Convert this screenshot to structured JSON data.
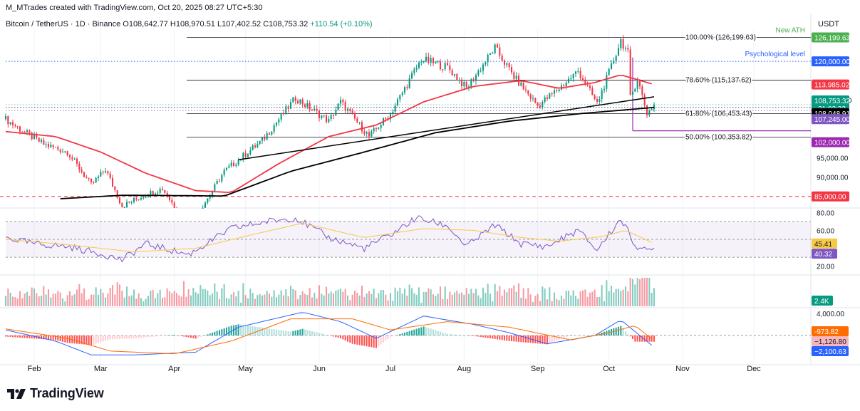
{
  "header": {
    "attribution": "M_MTrades created with TradingView.com, Oct 20, 2025 08:27 UTC+5:30",
    "symbol": "Bitcoin / TetherUS · 1D · Binance",
    "ohlc": "O108,642.77 H108,970.51 L107,402.52 C108,753.32",
    "change": "+110.54 (+0.10%)",
    "currency": "USDT"
  },
  "footer": {
    "brand": "TradingView"
  },
  "colors": {
    "up": "#089981",
    "down": "#f23645",
    "ema50": "#f23645",
    "ema200": "#000000",
    "rsi": "#7e57c2",
    "rsi_ma": "#f7c948",
    "macd": "#2962ff",
    "signal": "#ff6d00",
    "fib": "#131722",
    "ath": "#4caf50",
    "psych": "#2962ff",
    "support": "#e91e63"
  },
  "chart_data": {
    "type": "candlestick",
    "x_ticks": [
      "Feb",
      "Mar",
      "Apr",
      "May",
      "Jun",
      "Jul",
      "Aug",
      "Sep",
      "Oct",
      "Nov",
      "Dec"
    ],
    "price_axis_ticks": [
      "110,000.00",
      "95,000.00",
      "90,000.00"
    ],
    "price_ylim": [
      82000,
      128500
    ],
    "ohlc_keypoints": [
      [
        "2025-01-20",
        105000
      ],
      [
        "2025-01-27",
        102000
      ],
      [
        "2025-02-05",
        98500
      ],
      [
        "2025-02-15",
        96500
      ],
      [
        "2025-02-25",
        88000
      ],
      [
        "2025-03-03",
        92000
      ],
      [
        "2025-03-10",
        82500
      ],
      [
        "2025-03-20",
        85500
      ],
      [
        "2025-03-27",
        87000
      ],
      [
        "2025-04-07",
        77000
      ],
      [
        "2025-04-15",
        84500
      ],
      [
        "2025-04-22",
        91500
      ],
      [
        "2025-04-28",
        94500
      ],
      [
        "2025-05-08",
        99500
      ],
      [
        "2025-05-22",
        110500
      ],
      [
        "2025-06-05",
        104500
      ],
      [
        "2025-06-10",
        109500
      ],
      [
        "2025-06-22",
        100500
      ],
      [
        "2025-07-01",
        106500
      ],
      [
        "2025-07-14",
        120500
      ],
      [
        "2025-07-25",
        118500
      ],
      [
        "2025-08-02",
        113000
      ],
      [
        "2025-08-14",
        123500
      ],
      [
        "2025-08-22",
        116000
      ],
      [
        "2025-09-01",
        108500
      ],
      [
        "2025-09-10",
        113000
      ],
      [
        "2025-09-18",
        117500
      ],
      [
        "2025-09-26",
        109000
      ],
      [
        "2025-10-01",
        117000
      ],
      [
        "2025-10-06",
        125500
      ],
      [
        "2025-10-09",
        122000
      ],
      [
        "2025-10-10",
        110500
      ],
      [
        "2025-10-13",
        115500
      ],
      [
        "2025-10-17",
        106500
      ],
      [
        "2025-10-20",
        108753
      ]
    ],
    "candle_data_note": "",
    "fib_levels": [
      {
        "label": "100.00% (126,199.63)",
        "value": 126199.63
      },
      {
        "label": "78.60% (115,137.62)",
        "value": 115137.62
      },
      {
        "label": "61.80% (106,453.43)",
        "value": 106453.43
      },
      {
        "label": "50.00% (100,353.82)",
        "value": 100353.82
      }
    ],
    "annotations": [
      {
        "label": "New ATH",
        "value": 126199.63
      },
      {
        "label": "Psychological level",
        "value": 120000
      }
    ],
    "price_labels": [
      {
        "text": "126,199.63",
        "value": 126199.63,
        "color": "#4caf50"
      },
      {
        "text": "120,000.00",
        "value": 120000,
        "color": "#2962ff"
      },
      {
        "text": "113,985.02",
        "value": 113985.02,
        "color": "#f23645"
      },
      {
        "text": "108,753.32",
        "value": 108753.32,
        "color": "#089981",
        "sub": "21:02:32"
      },
      {
        "text": "108,048.91",
        "value": 108048.91,
        "color": "#000000"
      },
      {
        "text": "107,245.00",
        "value": 107245,
        "color": "#7e57c2"
      },
      {
        "text": "102,000.00",
        "value": 102000,
        "color": "#9c27b0"
      },
      {
        "text": "85,000.00",
        "value": 85000,
        "color": "#f23645"
      }
    ],
    "ema50_keypoints": [
      [
        "2025-01-20",
        101800
      ],
      [
        "2025-02-10",
        100500
      ],
      [
        "2025-03-01",
        96500
      ],
      [
        "2025-03-20",
        91000
      ],
      [
        "2025-04-10",
        86500
      ],
      [
        "2025-04-25",
        86000
      ],
      [
        "2025-05-15",
        93500
      ],
      [
        "2025-06-05",
        100500
      ],
      [
        "2025-06-25",
        103500
      ],
      [
        "2025-07-15",
        109500
      ],
      [
        "2025-08-05",
        113500
      ],
      [
        "2025-08-25",
        115000
      ],
      [
        "2025-09-10",
        113000
      ],
      [
        "2025-09-25",
        114500
      ],
      [
        "2025-10-06",
        116500
      ],
      [
        "2025-10-20",
        113985
      ]
    ],
    "ema200_keypoints": [
      [
        "2025-02-12",
        84400
      ],
      [
        "2025-03-10",
        85300
      ],
      [
        "2025-04-05",
        85200
      ],
      [
        "2025-04-22",
        85100
      ],
      [
        "2025-05-20",
        91500
      ],
      [
        "2025-06-20",
        96500
      ],
      [
        "2025-07-20",
        101500
      ],
      [
        "2025-08-20",
        104500
      ],
      [
        "2025-09-20",
        106500
      ],
      [
        "2025-10-20",
        108048
      ]
    ],
    "trendline": {
      "from": [
        "2025-04-28",
        94500
      ],
      "to": [
        "2025-10-20",
        110800
      ]
    },
    "support_line": {
      "value": 102000,
      "from": "2025-10-11",
      "to": "2025-11-28"
    },
    "rsi": {
      "axis_ticks": [
        "80.00",
        "60.00",
        "20.00"
      ],
      "levels": [
        70,
        50,
        30
      ],
      "ylim": [
        15,
        85
      ],
      "value_label": "40.32",
      "ma_label": "45.41",
      "keypoints": [
        [
          "2025-01-20",
          52
        ],
        [
          "2025-02-01",
          45
        ],
        [
          "2025-02-15",
          42
        ],
        [
          "2025-03-01",
          34
        ],
        [
          "2025-03-10",
          27
        ],
        [
          "2025-03-20",
          45
        ],
        [
          "2025-04-07",
          33
        ],
        [
          "2025-04-25",
          62
        ],
        [
          "2025-05-10",
          70
        ],
        [
          "2025-05-22",
          74
        ],
        [
          "2025-06-05",
          52
        ],
        [
          "2025-06-20",
          40
        ],
        [
          "2025-07-01",
          55
        ],
        [
          "2025-07-12",
          74
        ],
        [
          "2025-07-25",
          65
        ],
        [
          "2025-08-02",
          42
        ],
        [
          "2025-08-14",
          66
        ],
        [
          "2025-08-25",
          45
        ],
        [
          "2025-09-05",
          42
        ],
        [
          "2025-09-18",
          60
        ],
        [
          "2025-09-26",
          38
        ],
        [
          "2025-10-06",
          73
        ],
        [
          "2025-10-12",
          44
        ],
        [
          "2025-10-17",
          36
        ],
        [
          "2025-10-20",
          40.32
        ]
      ],
      "ma_keypoints": [
        [
          "2025-01-20",
          50
        ],
        [
          "2025-02-15",
          44
        ],
        [
          "2025-03-15",
          36
        ],
        [
          "2025-04-10",
          40
        ],
        [
          "2025-05-05",
          56
        ],
        [
          "2025-05-25",
          68
        ],
        [
          "2025-06-20",
          52
        ],
        [
          "2025-07-15",
          62
        ],
        [
          "2025-08-05",
          60
        ],
        [
          "2025-08-25",
          52
        ],
        [
          "2025-09-10",
          48
        ],
        [
          "2025-09-28",
          53
        ],
        [
          "2025-10-08",
          60
        ],
        [
          "2025-10-20",
          45.41
        ]
      ]
    },
    "volume": {
      "value_label": "2.4K"
    },
    "macd": {
      "axis_ticks": [
        "4,000.00"
      ],
      "ylim": [
        -5000,
        5000
      ],
      "labels": [
        {
          "text": "-973.82",
          "color": "#ff6d00"
        },
        {
          "text": "−1,126.80",
          "color": "#f5b7bd"
        },
        {
          "text": "−2,100.63",
          "color": "#2962ff"
        }
      ],
      "macd_keypoints": [
        [
          "2025-01-20",
          1000
        ],
        [
          "2025-02-10",
          -1000
        ],
        [
          "2025-02-25",
          -3500
        ],
        [
          "2025-03-15",
          -3500
        ],
        [
          "2025-04-10",
          -3000
        ],
        [
          "2025-04-28",
          1500
        ],
        [
          "2025-05-25",
          4200
        ],
        [
          "2025-06-10",
          2500
        ],
        [
          "2025-06-25",
          -500
        ],
        [
          "2025-07-15",
          3500
        ],
        [
          "2025-08-05",
          2000
        ],
        [
          "2025-08-20",
          500
        ],
        [
          "2025-09-05",
          -1500
        ],
        [
          "2025-09-25",
          0
        ],
        [
          "2025-10-06",
          2800
        ],
        [
          "2025-10-20",
          -2100.63
        ]
      ],
      "signal_keypoints": [
        [
          "2025-01-20",
          1200
        ],
        [
          "2025-02-15",
          -500
        ],
        [
          "2025-03-05",
          -2800
        ],
        [
          "2025-04-01",
          -3300
        ],
        [
          "2025-04-25",
          -1000
        ],
        [
          "2025-05-20",
          3000
        ],
        [
          "2025-06-15",
          3000
        ],
        [
          "2025-07-01",
          1000
        ],
        [
          "2025-07-25",
          2500
        ],
        [
          "2025-08-20",
          1500
        ],
        [
          "2025-09-15",
          -800
        ],
        [
          "2025-10-01",
          500
        ],
        [
          "2025-10-12",
          1800
        ],
        [
          "2025-10-20",
          -973.82
        ]
      ]
    }
  }
}
